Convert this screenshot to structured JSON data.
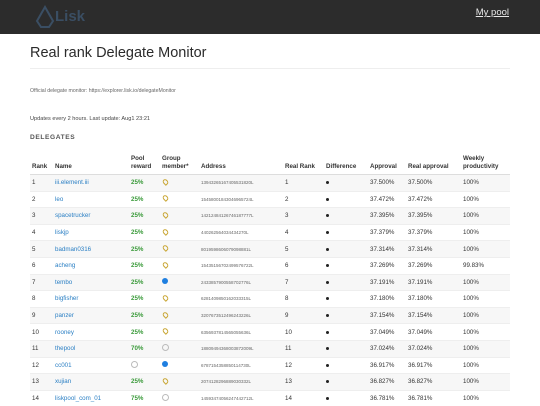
{
  "header": {
    "logo_text": "Lisk",
    "mypool_link": "My pool"
  },
  "page": {
    "title": "Real rank Delegate Monitor",
    "official_monitor": "Official delegate monitor: https://explorer.lisk.io/delegateMonitor",
    "update_info": "Updates every 2 hours. Last update: Aug1 23:21",
    "section_label": "DELEGATES"
  },
  "table": {
    "headers": [
      "Rank",
      "Name",
      "Pool reward",
      "Group member*",
      "Address",
      "Real Rank",
      "Difference",
      "Approval",
      "Real approval",
      "Weekly productivity"
    ],
    "rows": [
      {
        "rank": "1",
        "name": "iii.element.iii",
        "reward": "25%",
        "member": "pin",
        "address": "13943265167405531820L",
        "real_rank": "1",
        "approval": "37.500%",
        "real_approval": "37.500%",
        "productivity": "100%"
      },
      {
        "rank": "2",
        "name": "leo",
        "reward": "25%",
        "member": "pin",
        "address": "15458001843046965724L",
        "real_rank": "2",
        "approval": "37.472%",
        "real_approval": "37.472%",
        "productivity": "100%"
      },
      {
        "rank": "3",
        "name": "spacetrucker",
        "reward": "25%",
        "member": "pin",
        "address": "14212484126746187777L",
        "real_rank": "3",
        "approval": "37.395%",
        "real_approval": "37.395%",
        "productivity": "100%"
      },
      {
        "rank": "4",
        "name": "liskjp",
        "reward": "25%",
        "member": "pin",
        "address": "440262564034434270L",
        "real_rank": "4",
        "approval": "37.379%",
        "real_approval": "37.379%",
        "productivity": "100%"
      },
      {
        "rank": "5",
        "name": "badman0316",
        "reward": "25%",
        "member": "pin",
        "address": "8019598606079098881L",
        "real_rank": "5",
        "approval": "37.314%",
        "real_approval": "37.314%",
        "productivity": "100%"
      },
      {
        "rank": "6",
        "name": "acheng",
        "reward": "25%",
        "member": "pin",
        "address": "15435156702499576722L",
        "real_rank": "6",
        "approval": "37.269%",
        "real_approval": "37.269%",
        "productivity": "99.83%"
      },
      {
        "rank": "7",
        "name": "tembo",
        "reward": "25%",
        "member": "dot-blue",
        "address": "2433857900558702776L",
        "real_rank": "7",
        "approval": "37.191%",
        "real_approval": "37.191%",
        "productivity": "100%"
      },
      {
        "rank": "8",
        "name": "bigfisher",
        "reward": "25%",
        "member": "pin",
        "address": "6281409850162033315L",
        "real_rank": "8",
        "approval": "37.180%",
        "real_approval": "37.180%",
        "productivity": "100%"
      },
      {
        "rank": "9",
        "name": "panzer",
        "reward": "25%",
        "member": "pin",
        "address": "3207673512496243226L",
        "real_rank": "9",
        "approval": "37.154%",
        "real_approval": "37.154%",
        "productivity": "100%"
      },
      {
        "rank": "10",
        "name": "rooney",
        "reward": "25%",
        "member": "pin",
        "address": "6356937814565055636L",
        "real_rank": "10",
        "approval": "37.049%",
        "real_approval": "37.049%",
        "productivity": "100%"
      },
      {
        "rank": "11",
        "name": "thepool",
        "reward": "70%",
        "member": "dot-empty",
        "address": "18809494368003872009L",
        "real_rank": "11",
        "approval": "37.024%",
        "real_approval": "37.024%",
        "productivity": "100%"
      },
      {
        "rank": "12",
        "name": "cc001",
        "reward": "dot-empty",
        "member": "dot-blue",
        "address": "6787154358850114730L",
        "real_rank": "12",
        "approval": "36.917%",
        "real_approval": "36.917%",
        "productivity": "100%"
      },
      {
        "rank": "13",
        "name": "xujian",
        "reward": "25%",
        "member": "pin",
        "address": "2074128296889030332L",
        "real_rank": "13",
        "approval": "36.827%",
        "real_approval": "36.827%",
        "productivity": "100%"
      },
      {
        "rank": "14",
        "name": "liskpool_com_01",
        "reward": "75%",
        "member": "dot-empty",
        "address": "14593474056247442712L",
        "real_rank": "14",
        "approval": "36.781%",
        "real_approval": "36.781%",
        "productivity": "100%"
      }
    ]
  },
  "colors": {
    "navbar": "#2c2c2c",
    "link": "#2a7fc4",
    "reward": "#3a9a3a",
    "member_blue": "#1f7fe0",
    "pin": "#c8a531"
  }
}
